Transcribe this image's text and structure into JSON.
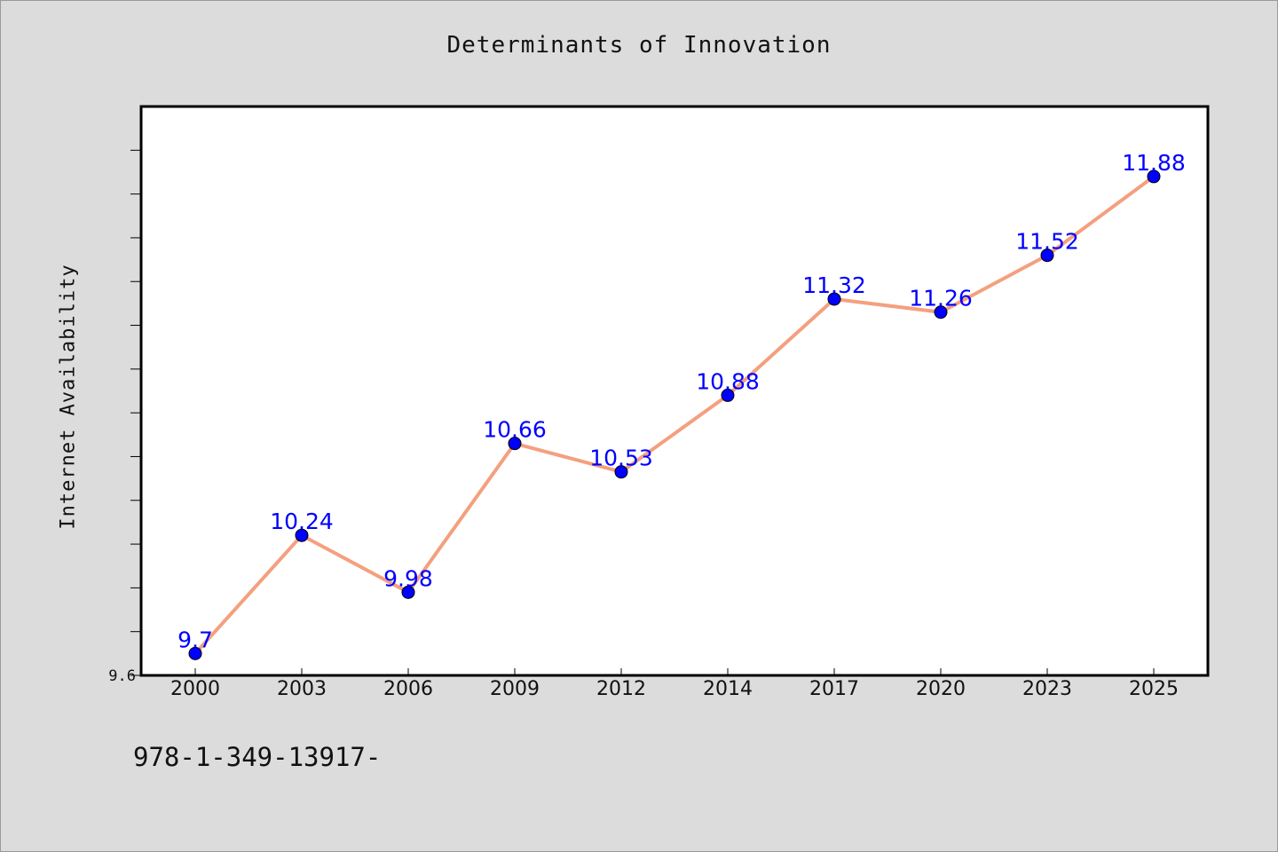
{
  "chart_data": {
    "type": "line",
    "title": "Determinants of Innovation",
    "xlabel": "",
    "ylabel": "Internet Availability",
    "categories": [
      "2000",
      "2003",
      "2006",
      "2009",
      "2012",
      "2014",
      "2017",
      "2020",
      "2023",
      "2025"
    ],
    "series": [
      {
        "values": [
          9.7,
          10.24,
          9.98,
          10.66,
          10.53,
          10.88,
          11.32,
          11.26,
          11.52,
          11.88
        ],
        "data_labels": [
          "9.7",
          "10.24",
          "9.98",
          "10.66",
          "10.53",
          "10.88",
          "11.32",
          "11.26",
          "11.52",
          "11.88"
        ],
        "line_color": "#f4a07e",
        "marker_color": "#0000ff",
        "label_color": "#0000ff"
      }
    ],
    "ylim": [
      9.6,
      12.2
    ],
    "y_tick_labels": [
      "9.6"
    ],
    "grid": false,
    "legend": "none"
  },
  "footer": {
    "code": "978-1-349-13917-"
  },
  "colors": {
    "background": "#dcdcdc",
    "plot_background": "#ffffff"
  }
}
